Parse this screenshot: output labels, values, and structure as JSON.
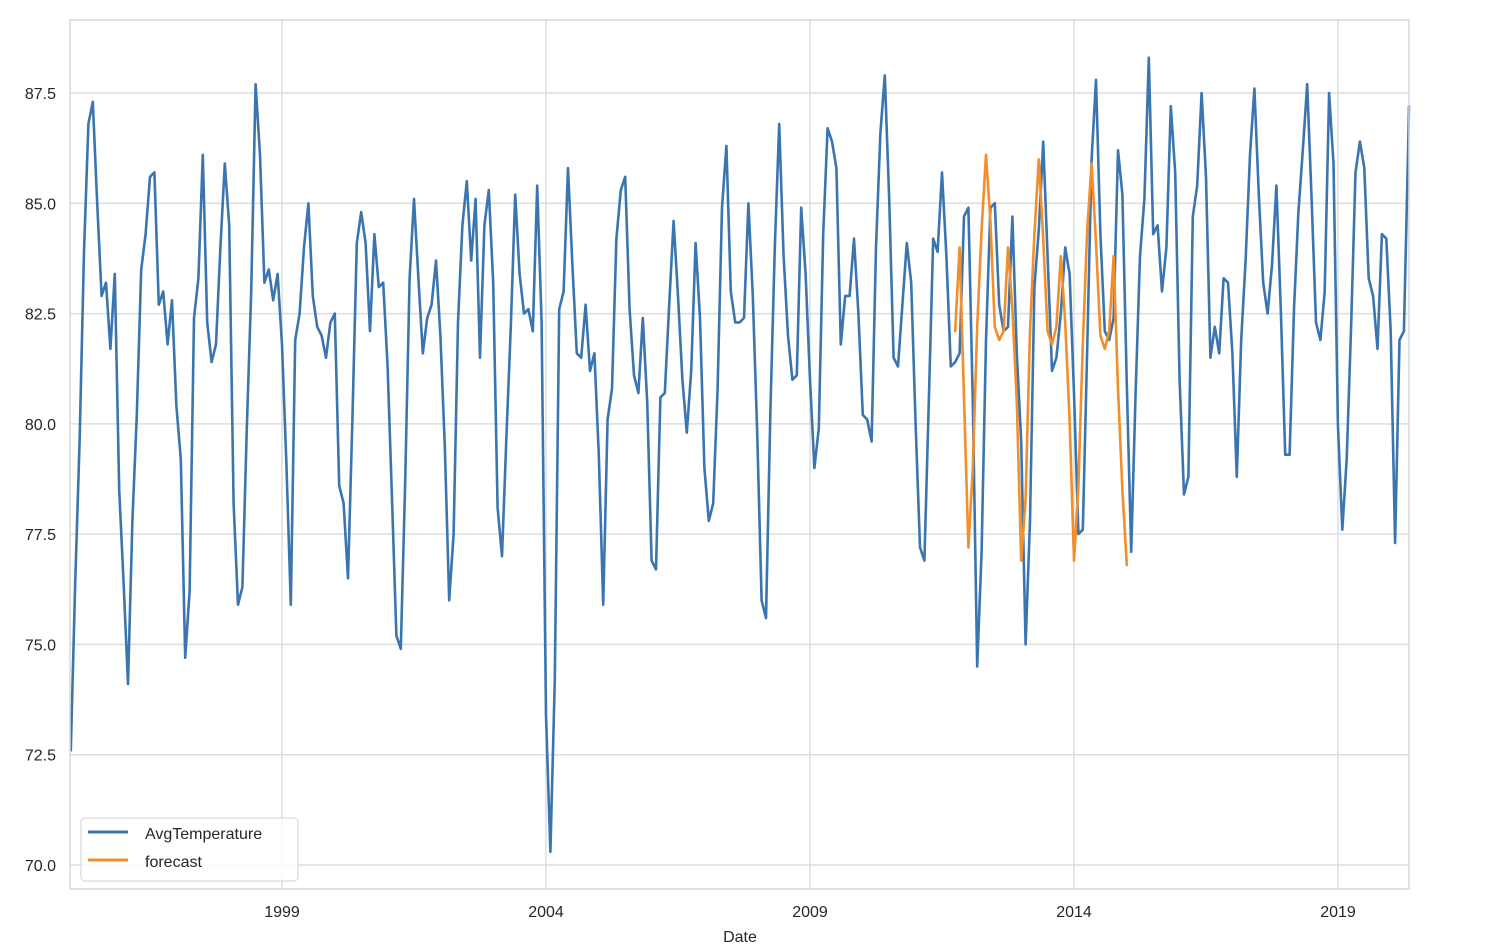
{
  "chart_data": {
    "type": "line",
    "title": "",
    "xlabel": "Date",
    "ylabel": "",
    "ylim": [
      69.5,
      89.0
    ],
    "xlim": [
      1995.0,
      2020.33
    ],
    "grid": true,
    "legend_position": "lower left",
    "x_ticks": [
      {
        "value": 1999,
        "label": "1999"
      },
      {
        "value": 2004,
        "label": "2004"
      },
      {
        "value": 2009,
        "label": "2009"
      },
      {
        "value": 2014,
        "label": "2014"
      },
      {
        "value": 2019,
        "label": "2019"
      }
    ],
    "y_ticks": [
      {
        "value": 70.0,
        "label": "70.0"
      },
      {
        "value": 72.5,
        "label": "72.5"
      },
      {
        "value": 75.0,
        "label": "75.0"
      },
      {
        "value": 77.5,
        "label": "77.5"
      },
      {
        "value": 80.0,
        "label": "80.0"
      },
      {
        "value": 82.5,
        "label": "82.5"
      },
      {
        "value": 85.0,
        "label": "85.0"
      },
      {
        "value": 87.5,
        "label": "87.5"
      }
    ],
    "series": [
      {
        "name": "AvgTemperature",
        "color": "#3a75af",
        "start": 1995.0,
        "step": 0.08333,
        "values": [
          72.6,
          76.4,
          79.6,
          83.9,
          86.8,
          87.3,
          85.0,
          82.9,
          83.2,
          81.7,
          83.4,
          78.5,
          76.4,
          74.1,
          77.8,
          80.2,
          83.5,
          84.3,
          85.6,
          85.7,
          82.7,
          83.0,
          81.8,
          82.8,
          80.4,
          79.2,
          74.7,
          76.2,
          82.4,
          83.3,
          86.1,
          82.3,
          81.4,
          81.8,
          84.0,
          85.9,
          84.5,
          78.2,
          75.9,
          76.3,
          79.9,
          83.0,
          87.7,
          86.1,
          83.2,
          83.5,
          82.8,
          83.4,
          81.8,
          79.1,
          75.9,
          81.9,
          82.5,
          84.0,
          85.0,
          82.9,
          82.2,
          82.0,
          81.5,
          82.3,
          82.5,
          78.6,
          78.2,
          76.5,
          80.1,
          84.1,
          84.8,
          84.1,
          82.1,
          84.3,
          83.1,
          83.2,
          81.3,
          78.3,
          75.2,
          74.9,
          78.7,
          83.3,
          85.1,
          83.3,
          81.6,
          82.4,
          82.7,
          83.7,
          82.0,
          79.5,
          76.0,
          77.5,
          82.3,
          84.5,
          85.5,
          83.7,
          85.1,
          81.5,
          84.5,
          85.3,
          83.2,
          78.1,
          77.0,
          79.7,
          82.2,
          85.2,
          83.4,
          82.5,
          82.6,
          82.1,
          85.4,
          82.3,
          73.4,
          70.3,
          74.2,
          82.6,
          83.0,
          85.8,
          83.6,
          81.6,
          81.5,
          82.7,
          81.2,
          81.6,
          79.3,
          75.9,
          80.1,
          80.8,
          84.2,
          85.3,
          85.6,
          82.6,
          81.1,
          80.7,
          82.4,
          80.5,
          76.9,
          76.7,
          80.6,
          80.7,
          82.7,
          84.6,
          82.9,
          81.0,
          79.8,
          81.2,
          84.1,
          82.4,
          79.0,
          77.8,
          78.2,
          80.8,
          84.9,
          86.3,
          83.0,
          82.3,
          82.3,
          82.4,
          85.0,
          82.9,
          79.8,
          76.0,
          75.6,
          80.3,
          84.0,
          86.8,
          83.8,
          82.0,
          81.0,
          81.1,
          84.9,
          83.4,
          81.0,
          79.0,
          79.9,
          84.3,
          86.7,
          86.4,
          85.8,
          81.8,
          82.9,
          82.9,
          84.2,
          82.5,
          80.2,
          80.1,
          79.6,
          84.0,
          86.6,
          87.9,
          85.1,
          81.5,
          81.3,
          82.7,
          84.1,
          83.2,
          80.0,
          77.2,
          76.9,
          80.5,
          84.2,
          83.9,
          85.7,
          83.8,
          81.3,
          81.4,
          81.6,
          84.7,
          84.9,
          80.5,
          74.5,
          77.1,
          81.9,
          84.9,
          85.0,
          82.7,
          82.1,
          82.2,
          84.7,
          81.6,
          79.6,
          75.0,
          77.8,
          83.1,
          84.4,
          86.4,
          83.8,
          81.2,
          81.5,
          82.5,
          84.0,
          83.4,
          80.7,
          77.5,
          77.6,
          81.7,
          86.0,
          87.8,
          84.3,
          82.1,
          81.9,
          82.4,
          86.2,
          85.2,
          80.9,
          77.1,
          80.7,
          83.8,
          85.1,
          88.3,
          84.3,
          84.5,
          83.0,
          84.0,
          87.2,
          85.7,
          81.0,
          78.4,
          78.8,
          84.7,
          85.4,
          87.5,
          85.6,
          81.5,
          82.2,
          81.6,
          83.3,
          83.2,
          81.6,
          78.8,
          81.9,
          83.7,
          86.1,
          87.6,
          85.2,
          83.2,
          82.5,
          83.6,
          85.4,
          82.6,
          79.3,
          79.3,
          82.6,
          84.8,
          86.2,
          87.7,
          85.1,
          82.3,
          81.9,
          83.0,
          87.5,
          85.9,
          80.0,
          77.6,
          79.2,
          82.2,
          85.7,
          86.4,
          85.8,
          83.3,
          82.9,
          81.7,
          84.3,
          84.2,
          82.1,
          77.3,
          81.9,
          82.1,
          86.4,
          87.2
        ]
      },
      {
        "name": "forecast",
        "color": "#f28e2b",
        "start": 2011.75,
        "step": 0.08333,
        "values": [
          82.1,
          84.0,
          80.6,
          77.2,
          79.0,
          82.2,
          84.4,
          86.1,
          84.6,
          82.2,
          81.9,
          82.1,
          84.0,
          82.6,
          80.5,
          76.9,
          78.3,
          82.1,
          84.3,
          86.0,
          84.2,
          82.1,
          81.8,
          82.2,
          83.8,
          82.3,
          80.1,
          76.9,
          78.6,
          81.8,
          84.4,
          85.9,
          84.1,
          82.0,
          81.7,
          82.1,
          83.8,
          80.8,
          78.5,
          76.8
        ]
      }
    ]
  },
  "legend": {
    "items": [
      {
        "label": "AvgTemperature",
        "color": "#3a75af"
      },
      {
        "label": "forecast",
        "color": "#f28e2b"
      }
    ]
  },
  "style": {
    "grid_color": "#dddddd",
    "spine_color": "#d8d8d8",
    "text_color": "#262626"
  }
}
